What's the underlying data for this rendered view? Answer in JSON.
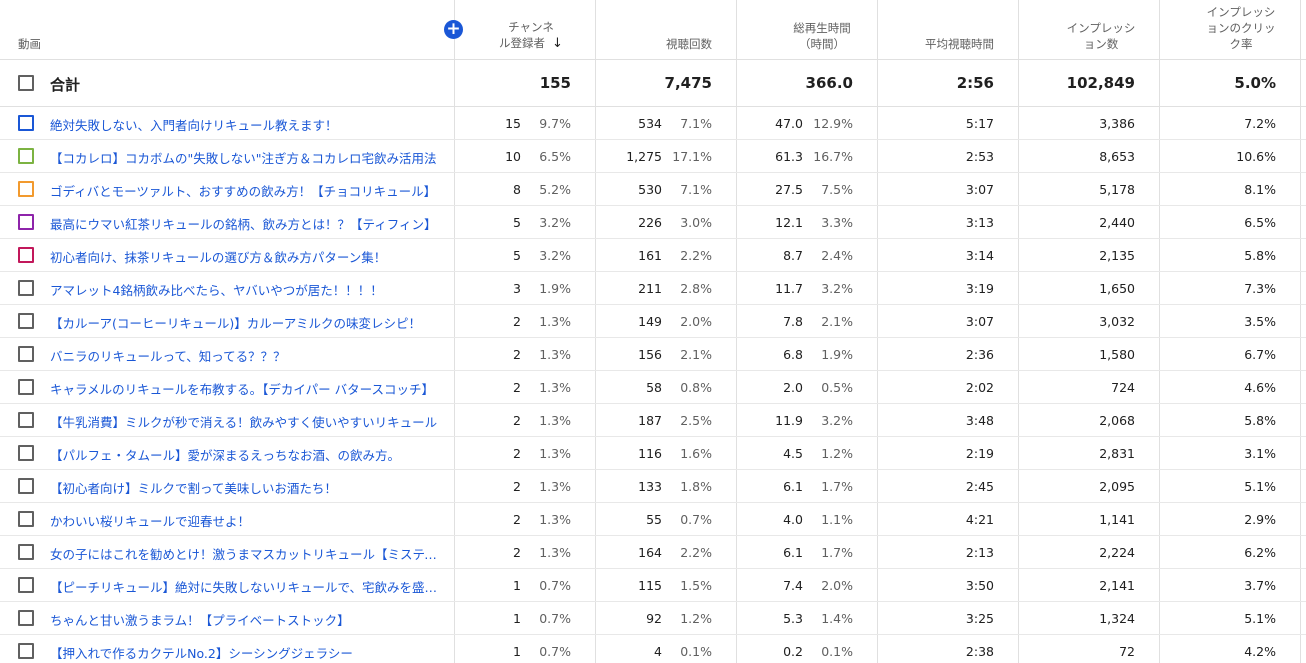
{
  "header": {
    "video": "動画",
    "add_icon": "plus-circle-icon",
    "subscribers": [
      "チャンネ",
      "ル登録者"
    ],
    "sort_icon": "arrow-down-icon",
    "views": "視聴回数",
    "watch_time": [
      "総再生時間",
      "（時間）"
    ],
    "avg_duration": "平均視聴時間",
    "impressions": [
      "インプレッシ",
      "ョン数"
    ],
    "ctr": [
      "インプレッシ",
      "ョンのクリッ",
      "ク率"
    ]
  },
  "colors": {
    "accent": "#1a57d6",
    "border": "#e0e0e0"
  },
  "total": {
    "label": "合計",
    "subscribers": "155",
    "views": "7,475",
    "watch_time": "366.0",
    "avg_duration": "2:56",
    "impressions": "102,849",
    "ctr": "5.0%"
  },
  "rows": [
    {
      "title": "絶対失敗しない、入門者向けリキュール教えます！",
      "color": "#1a57d6",
      "subs": "15",
      "subs_pct": "9.7%",
      "views": "534",
      "views_pct": "7.1%",
      "wt": "47.0",
      "wt_pct": "12.9%",
      "avg": "5:17",
      "imp": "3,386",
      "ctr": "7.2%"
    },
    {
      "title": "【コカレロ】コカボムの\"失敗しない\"注ぎ方＆コカレロ宅飲み活用法",
      "color": "#7cb342",
      "subs": "10",
      "subs_pct": "6.5%",
      "views": "1,275",
      "views_pct": "17.1%",
      "wt": "61.3",
      "wt_pct": "16.7%",
      "avg": "2:53",
      "imp": "8,653",
      "ctr": "10.6%"
    },
    {
      "title": "ゴディバとモーツァルト、おすすめの飲み方！【チョコリキュール】",
      "color": "#f29a2e",
      "subs": "8",
      "subs_pct": "5.2%",
      "views": "530",
      "views_pct": "7.1%",
      "wt": "27.5",
      "wt_pct": "7.5%",
      "avg": "3:07",
      "imp": "5,178",
      "ctr": "8.1%"
    },
    {
      "title": "最高にウマい紅茶リキュールの銘柄、飲み方とは！？【ティフィン】",
      "color": "#8e24aa",
      "subs": "5",
      "subs_pct": "3.2%",
      "views": "226",
      "views_pct": "3.0%",
      "wt": "12.1",
      "wt_pct": "3.3%",
      "avg": "3:13",
      "imp": "2,440",
      "ctr": "6.5%"
    },
    {
      "title": "初心者向け、抹茶リキュールの選び方＆飲み方パターン集！",
      "color": "#c2185b",
      "subs": "5",
      "subs_pct": "3.2%",
      "views": "161",
      "views_pct": "2.2%",
      "wt": "8.7",
      "wt_pct": "2.4%",
      "avg": "3:14",
      "imp": "2,135",
      "ctr": "5.8%"
    },
    {
      "title": "アマレット4銘柄飲み比べたら、ヤバいやつが居た！！！！",
      "color": "",
      "subs": "3",
      "subs_pct": "1.9%",
      "views": "211",
      "views_pct": "2.8%",
      "wt": "11.7",
      "wt_pct": "3.2%",
      "avg": "3:19",
      "imp": "1,650",
      "ctr": "7.3%"
    },
    {
      "title": "【カルーア(コーヒーリキュール)】カルーアミルクの味変レシピ！",
      "color": "",
      "subs": "2",
      "subs_pct": "1.3%",
      "views": "149",
      "views_pct": "2.0%",
      "wt": "7.8",
      "wt_pct": "2.1%",
      "avg": "3:07",
      "imp": "3,032",
      "ctr": "3.5%"
    },
    {
      "title": "バニラのリキュールって、知ってる？？？",
      "color": "",
      "subs": "2",
      "subs_pct": "1.3%",
      "views": "156",
      "views_pct": "2.1%",
      "wt": "6.8",
      "wt_pct": "1.9%",
      "avg": "2:36",
      "imp": "1,580",
      "ctr": "6.7%"
    },
    {
      "title": "キャラメルのリキュールを布教する。【デカイパー バタースコッチ】",
      "color": "",
      "subs": "2",
      "subs_pct": "1.3%",
      "views": "58",
      "views_pct": "0.8%",
      "wt": "2.0",
      "wt_pct": "0.5%",
      "avg": "2:02",
      "imp": "724",
      "ctr": "4.6%"
    },
    {
      "title": "【牛乳消費】ミルクが秒で消える！飲みやすく使いやすいリキュール",
      "color": "",
      "subs": "2",
      "subs_pct": "1.3%",
      "views": "187",
      "views_pct": "2.5%",
      "wt": "11.9",
      "wt_pct": "3.2%",
      "avg": "3:48",
      "imp": "2,068",
      "ctr": "5.8%"
    },
    {
      "title": "【パルフェ・タムール】愛が深まるえっちなお酒、の飲み方。",
      "color": "",
      "subs": "2",
      "subs_pct": "1.3%",
      "views": "116",
      "views_pct": "1.6%",
      "wt": "4.5",
      "wt_pct": "1.2%",
      "avg": "2:19",
      "imp": "2,831",
      "ctr": "3.1%"
    },
    {
      "title": "【初心者向け】ミルクで割って美味しいお酒たち！",
      "color": "",
      "subs": "2",
      "subs_pct": "1.3%",
      "views": "133",
      "views_pct": "1.8%",
      "wt": "6.1",
      "wt_pct": "1.7%",
      "avg": "2:45",
      "imp": "2,095",
      "ctr": "5.1%"
    },
    {
      "title": "かわいい桜リキュールで迎春せよ！",
      "color": "",
      "subs": "2",
      "subs_pct": "1.3%",
      "views": "55",
      "views_pct": "0.7%",
      "wt": "4.0",
      "wt_pct": "1.1%",
      "avg": "4:21",
      "imp": "1,141",
      "ctr": "2.9%"
    },
    {
      "title": "女の子にはこれを勧めとけ！激うまマスカットリキュール【ミスティア】",
      "color": "",
      "subs": "2",
      "subs_pct": "1.3%",
      "views": "164",
      "views_pct": "2.2%",
      "wt": "6.1",
      "wt_pct": "1.7%",
      "avg": "2:13",
      "imp": "2,224",
      "ctr": "6.2%"
    },
    {
      "title": "【ピーチリキュール】絶対に失敗しないリキュールで、宅飲みを盛り上げよう",
      "color": "",
      "subs": "1",
      "subs_pct": "0.7%",
      "views": "115",
      "views_pct": "1.5%",
      "wt": "7.4",
      "wt_pct": "2.0%",
      "avg": "3:50",
      "imp": "2,141",
      "ctr": "3.7%"
    },
    {
      "title": "ちゃんと甘い激うまラム！【プライベートストック】",
      "color": "",
      "subs": "1",
      "subs_pct": "0.7%",
      "views": "92",
      "views_pct": "1.2%",
      "wt": "5.3",
      "wt_pct": "1.4%",
      "avg": "3:25",
      "imp": "1,324",
      "ctr": "5.1%"
    },
    {
      "title": "【押入れで作るカクテルNo.2】シーシングジェラシー",
      "color": "",
      "subs": "1",
      "subs_pct": "0.7%",
      "views": "4",
      "views_pct": "0.1%",
      "wt": "0.2",
      "wt_pct": "0.1%",
      "avg": "2:38",
      "imp": "72",
      "ctr": "4.2%"
    }
  ]
}
